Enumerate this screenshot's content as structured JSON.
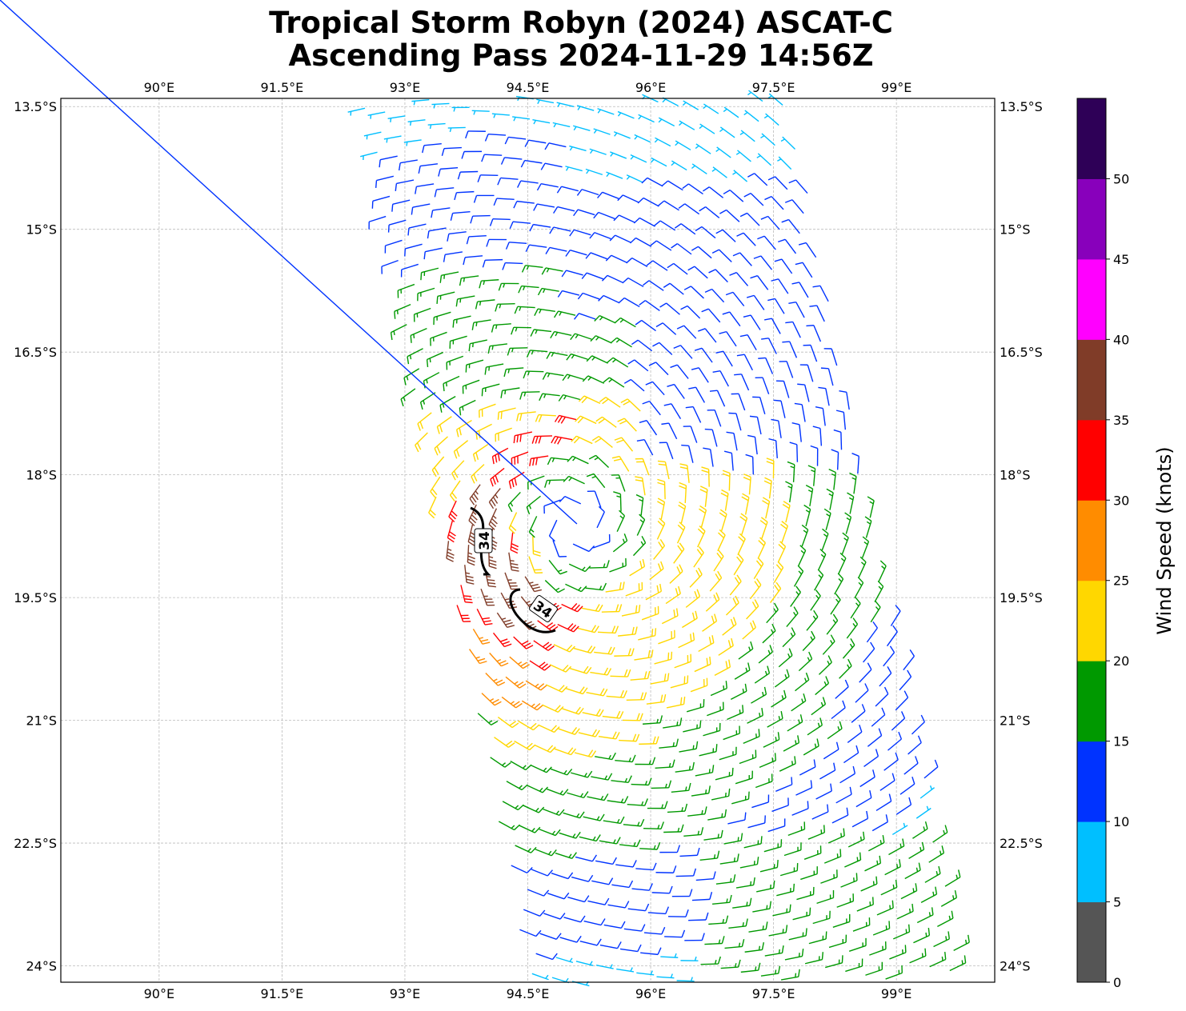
{
  "chart_data": {
    "type": "wind-barbs-map",
    "title_line1": "Tropical Storm Robyn (2024) ASCAT-C",
    "title_line2": "Ascending Pass 2024-11-29 14:56Z",
    "lon_ticks": [
      "90°E",
      "91.5°E",
      "93°E",
      "94.5°E",
      "96°E",
      "97.5°E",
      "99°E"
    ],
    "lon_values": [
      90,
      91.5,
      93,
      94.5,
      96,
      97.5,
      99
    ],
    "lat_ticks": [
      "13.5°S",
      "15°S",
      "16.5°S",
      "18°S",
      "19.5°S",
      "21°S",
      "22.5°S",
      "24°S"
    ],
    "lat_values": [
      -13.5,
      -15,
      -16.5,
      -18,
      -19.5,
      -21,
      -22.5,
      -24
    ],
    "lon_range": [
      88.8,
      100.2
    ],
    "lat_range": [
      -24.2,
      -13.4
    ],
    "grid": true,
    "contour": {
      "level_label": "34",
      "color": "#000000"
    },
    "colorbar": {
      "label": "Wind Speed (knots)",
      "position": "right",
      "levels": [
        0,
        5,
        10,
        15,
        20,
        25,
        30,
        35,
        40,
        45,
        50,
        55
      ],
      "tick_labels": [
        "0",
        "5",
        "10",
        "15",
        "20",
        "25",
        "30",
        "35",
        "40",
        "45",
        "50"
      ],
      "colors": [
        "#555555",
        "#00bfff",
        "#0033ff",
        "#009900",
        "#ffd700",
        "#ff8c00",
        "#ff0000",
        "#803c28",
        "#ff00ff",
        "#8800bb",
        "#2e0057"
      ]
    }
  }
}
